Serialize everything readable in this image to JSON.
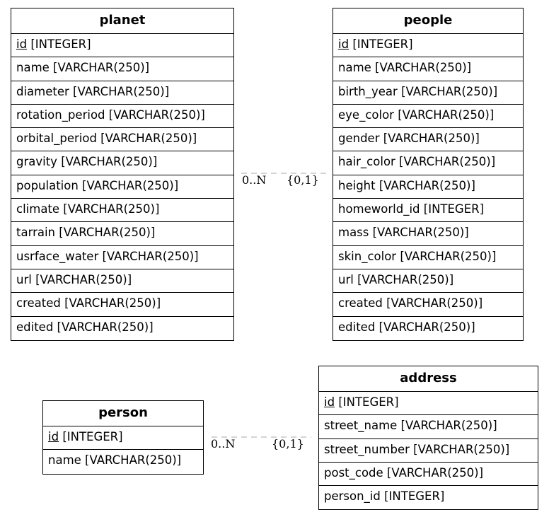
{
  "entities": {
    "planet": {
      "name": "planet",
      "pk": {
        "name": "id",
        "type": "[INTEGER]"
      },
      "columns": [
        "name [VARCHAR(250)]",
        "diameter [VARCHAR(250)]",
        "rotation_period [VARCHAR(250)]",
        "orbital_period [VARCHAR(250)]",
        "gravity [VARCHAR(250)]",
        "population [VARCHAR(250)]",
        "climate [VARCHAR(250)]",
        "tarrain [VARCHAR(250)]",
        "usrface_water [VARCHAR(250)]",
        "url [VARCHAR(250)]",
        "created [VARCHAR(250)]",
        "edited [VARCHAR(250)]"
      ]
    },
    "people": {
      "name": "people",
      "pk": {
        "name": "id",
        "type": "[INTEGER]"
      },
      "columns": [
        "name [VARCHAR(250)]",
        "birth_year [VARCHAR(250)]",
        "eye_color [VARCHAR(250)]",
        "gender [VARCHAR(250)]",
        "hair_color [VARCHAR(250)]",
        "height [VARCHAR(250)]",
        "homeworld_id [INTEGER]",
        "mass [VARCHAR(250)]",
        "skin_color [VARCHAR(250)]",
        "url [VARCHAR(250)]",
        "created [VARCHAR(250)]",
        "edited [VARCHAR(250)]"
      ]
    },
    "person": {
      "name": "person",
      "pk": {
        "name": "id",
        "type": "[INTEGER]"
      },
      "columns": [
        "name [VARCHAR(250)]"
      ]
    },
    "address": {
      "name": "address",
      "pk": {
        "name": "id",
        "type": "[INTEGER]"
      },
      "columns": [
        "street_name [VARCHAR(250)]",
        "street_number [VARCHAR(250)]",
        "post_code [VARCHAR(250)]",
        "person_id [INTEGER]"
      ]
    }
  },
  "relationships": [
    {
      "from": "planet",
      "to": "people",
      "from_card": "0..N",
      "to_card": "{0,1}"
    },
    {
      "from": "person",
      "to": "address",
      "from_card": "0..N",
      "to_card": "{0,1}"
    }
  ],
  "colors": {
    "line": "#aaaaaa",
    "border": "#000000"
  }
}
